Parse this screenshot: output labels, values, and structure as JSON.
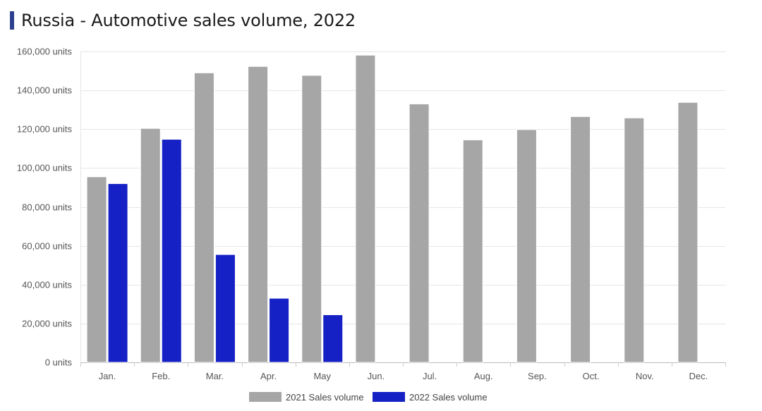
{
  "title": "Russia - Automotive sales volume, 2022",
  "accent_color": "#2d3f8f",
  "chart_data": {
    "type": "bar",
    "categories": [
      "Jan.",
      "Feb.",
      "Mar.",
      "Apr.",
      "May",
      "Jun.",
      "Jul.",
      "Aug.",
      "Sep.",
      "Oct.",
      "Nov.",
      "Dec."
    ],
    "series": [
      {
        "name": "2021 Sales volume",
        "color": "#a6a6a6",
        "values": [
          95500,
          120400,
          149000,
          152300,
          147700,
          158100,
          133000,
          114500,
          119800,
          126500,
          125800,
          133800
        ]
      },
      {
        "name": "2022 Sales volume",
        "color": "#1521c4",
        "values": [
          92000,
          114800,
          55500,
          33000,
          24500,
          null,
          null,
          null,
          null,
          null,
          null,
          null
        ]
      }
    ],
    "ylim": [
      0,
      160000
    ],
    "yticks": [
      0,
      20000,
      40000,
      60000,
      80000,
      100000,
      120000,
      140000,
      160000
    ],
    "ytick_labels": [
      "0 units",
      "20,000 units",
      "40,000 units",
      "60,000 units",
      "80,000 units",
      "100,000 units",
      "120,000 units",
      "140,000 units",
      "160,000 units"
    ],
    "grid": true,
    "legend_position": "bottom-center"
  }
}
